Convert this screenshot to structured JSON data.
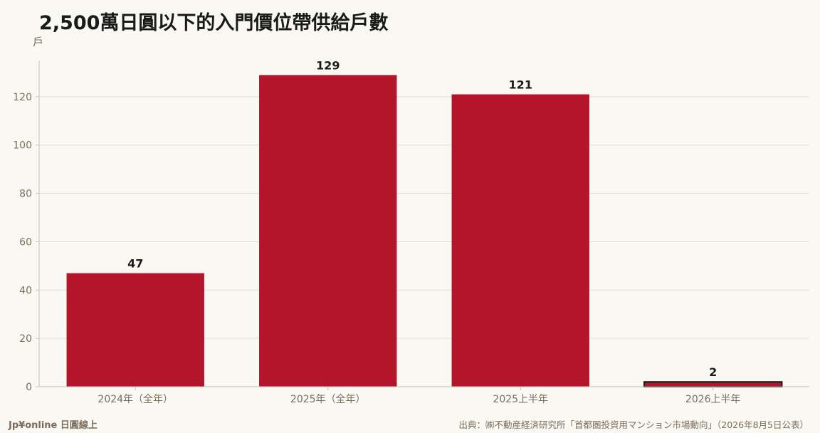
{
  "colors": {
    "bar": "#b5152b",
    "highlight_outline": "#1a1a1a",
    "grid": "#e3ddd2",
    "axis": "#c9c1b3",
    "tick_text": "#7a6e5c",
    "label_text": "#1a1a1a",
    "background": "#faf8f3"
  },
  "footer": {
    "brand": "Jp¥online 日圓線上",
    "source": "出典：㈱不動産経済研究所「首都圏投資用マンション市場動向」（2026年8月5日公表）"
  },
  "chart_data": {
    "type": "bar",
    "title": "2,500萬日圓以下的入門價位帶供給戶數",
    "ylabel": "戶",
    "xlabel": "",
    "categories": [
      "2024年（全年）",
      "2025年（全年）",
      "2025上半年",
      "2026上半年"
    ],
    "values": [
      47,
      129,
      121,
      2
    ],
    "data_labels": [
      "47",
      "129",
      "121",
      "2"
    ],
    "highlighted_category": "2026上半年",
    "ylim": [
      0,
      135
    ],
    "yticks": [
      0,
      20,
      40,
      60,
      80,
      100,
      120
    ],
    "grid": true,
    "legend": "none"
  }
}
